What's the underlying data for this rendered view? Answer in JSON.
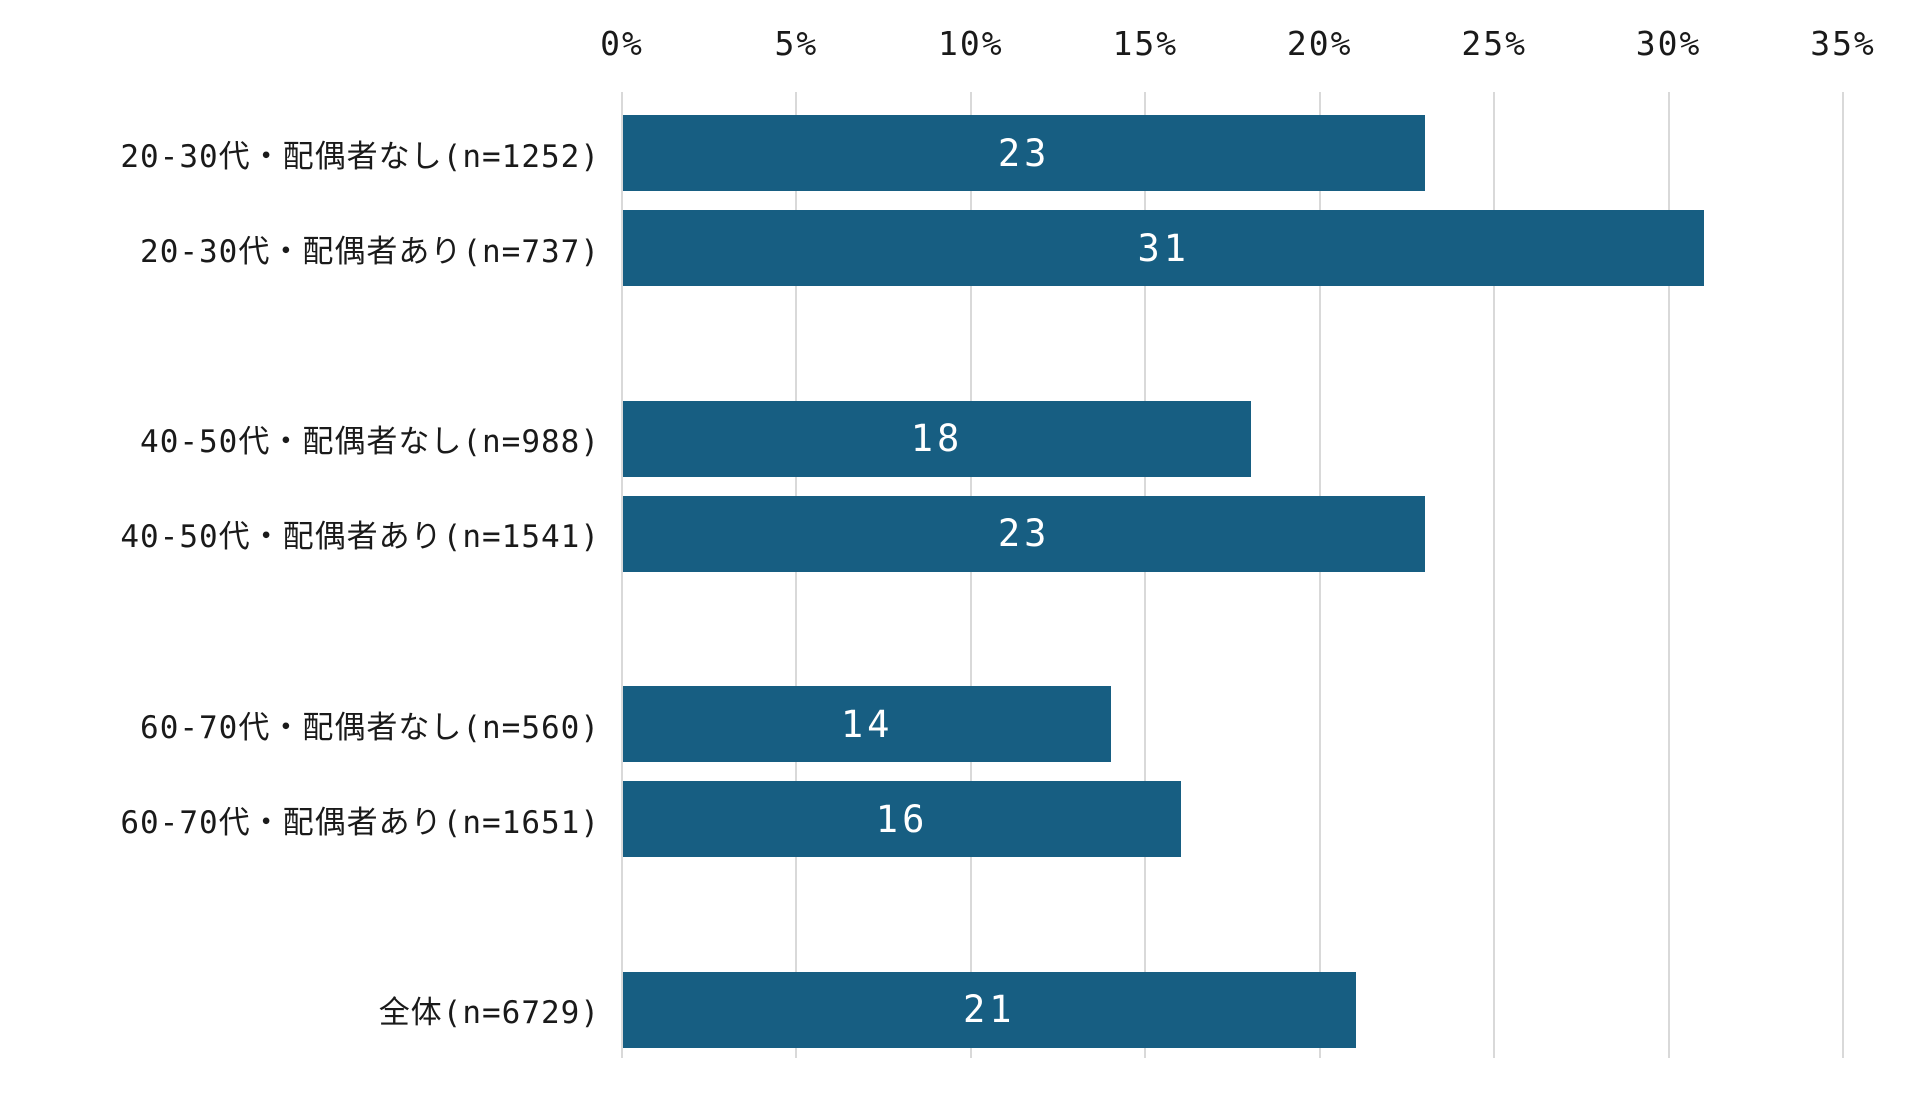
{
  "chart_data": {
    "type": "bar",
    "orientation": "horizontal",
    "title": "",
    "xlabel": "",
    "ylabel": "",
    "categories": [
      "20-30代・配偶者なし(n=1252)",
      "20-30代・配偶者あり(n=737)",
      "40-50代・配偶者なし(n=988)",
      "40-50代・配偶者あり(n=1541)",
      "60-70代・配偶者なし(n=560)",
      "60-70代・配偶者あり(n=1651)",
      "全体(n=6729)"
    ],
    "values": [
      23,
      31,
      18,
      23,
      14,
      16,
      21
    ],
    "value_labels": [
      "23",
      "31",
      "18",
      "23",
      "14",
      "16",
      "21"
    ],
    "row_slots": [
      0,
      1,
      3,
      4,
      6,
      7,
      9
    ],
    "total_slots": 10,
    "axis": {
      "position": "top",
      "min": 0,
      "max": 35,
      "tick_values": [
        0,
        5,
        10,
        15,
        20,
        25,
        30,
        35
      ],
      "tick_labels": [
        "0%",
        "5%",
        "10%",
        "15%",
        "20%",
        "25%",
        "30%",
        "35%"
      ]
    },
    "grid": true,
    "legend": false,
    "colors": {
      "bar": "#175E82",
      "gridline": "#D9D9D9",
      "bar_value_text": "#FFFFFF",
      "axis_text": "#1A1A1A",
      "background": "#FFFFFF"
    }
  }
}
